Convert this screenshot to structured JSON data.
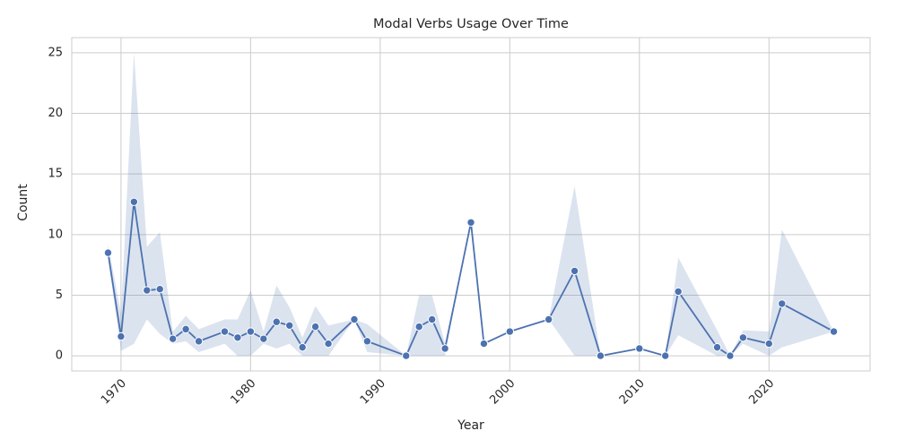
{
  "chart_data": {
    "type": "line",
    "title": "Modal Verbs Usage Over Time",
    "xlabel": "Year",
    "ylabel": "Count",
    "xlim": [
      1966.2,
      2027.8
    ],
    "ylim": [
      -1.25,
      26.25
    ],
    "xticks": [
      1970,
      1980,
      1990,
      2000,
      2010,
      2020
    ],
    "yticks": [
      0,
      5,
      10,
      15,
      20,
      25
    ],
    "grid": true,
    "legend": "none",
    "colors": {
      "line": "#4c72b0",
      "band": "#4c72b0",
      "grid": "#cccccc",
      "background": "#ffffff"
    },
    "series": [
      {
        "x": [
          1969,
          1970,
          1971,
          1972,
          1973,
          1974,
          1975,
          1976,
          1978,
          1979,
          1980,
          1981,
          1982,
          1983,
          1984,
          1985,
          1986,
          1988,
          1989,
          1992,
          1993,
          1994,
          1995,
          1997,
          1998,
          2000,
          2003,
          2005,
          2007,
          2010,
          2012,
          2013,
          2016,
          2017,
          2018,
          2020,
          2021,
          2025
        ],
        "values": [
          8.5,
          1.6,
          12.7,
          5.4,
          5.5,
          1.4,
          2.2,
          1.2,
          2.0,
          1.5,
          2.0,
          1.4,
          2.8,
          2.5,
          0.7,
          2.4,
          1.0,
          3.0,
          1.2,
          0.0,
          2.4,
          3.0,
          0.6,
          11.0,
          1.0,
          2.0,
          3.0,
          7.0,
          0.0,
          0.6,
          0.0,
          5.3,
          0.7,
          0.0,
          1.5,
          1.0,
          4.3,
          2.0
        ],
        "ci_low": [
          8.0,
          0.4,
          1.0,
          3.0,
          1.8,
          1.0,
          1.2,
          0.3,
          1.0,
          0.0,
          0.0,
          1.0,
          0.6,
          1.0,
          0.0,
          0.0,
          0.0,
          3.0,
          0.3,
          0.0,
          0.0,
          0.0,
          0.0,
          11.0,
          1.0,
          2.0,
          3.0,
          0.0,
          0.0,
          0.6,
          0.0,
          1.7,
          0.0,
          0.0,
          1.0,
          0.0,
          0.7,
          2.0
        ],
        "ci_high": [
          9.2,
          3.5,
          25.0,
          9.0,
          10.2,
          2.0,
          3.3,
          2.2,
          3.0,
          3.0,
          5.4,
          2.0,
          5.8,
          4.0,
          1.5,
          4.1,
          2.5,
          3.0,
          2.6,
          0.0,
          5.0,
          5.0,
          1.0,
          11.0,
          1.0,
          2.0,
          3.0,
          14.0,
          0.0,
          0.6,
          0.0,
          8.1,
          2.1,
          0.0,
          2.1,
          2.0,
          10.4,
          2.0
        ]
      }
    ]
  }
}
